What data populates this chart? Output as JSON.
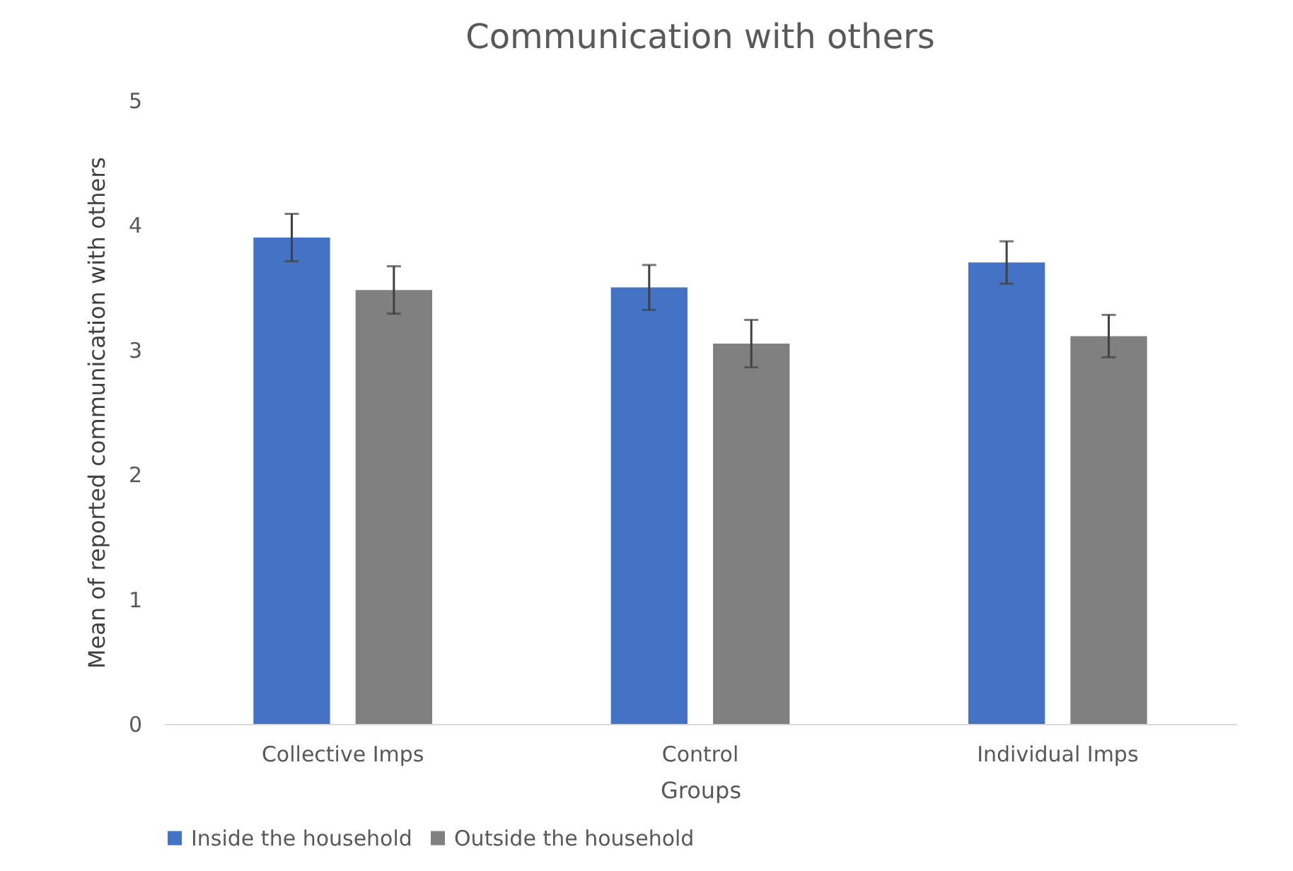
{
  "chart_data": {
    "type": "bar",
    "title": "Communication with others",
    "xlabel": "Groups",
    "ylabel": "Mean of reported communication with others",
    "categories": [
      "Collective Imps",
      "Control",
      "Individual Imps"
    ],
    "series": [
      {
        "name": "Inside the household",
        "color": "#4472c4",
        "values": [
          3.9,
          3.5,
          3.7
        ],
        "errors": [
          0.19,
          0.18,
          0.17
        ]
      },
      {
        "name": "Outside the household",
        "color": "#808080",
        "values": [
          3.48,
          3.05,
          3.11
        ],
        "errors": [
          0.19,
          0.19,
          0.17
        ]
      }
    ],
    "ylim": [
      0,
      5
    ],
    "yticks": [
      0,
      1,
      2,
      3,
      4,
      5
    ],
    "grid": false,
    "legend": "bottom"
  }
}
